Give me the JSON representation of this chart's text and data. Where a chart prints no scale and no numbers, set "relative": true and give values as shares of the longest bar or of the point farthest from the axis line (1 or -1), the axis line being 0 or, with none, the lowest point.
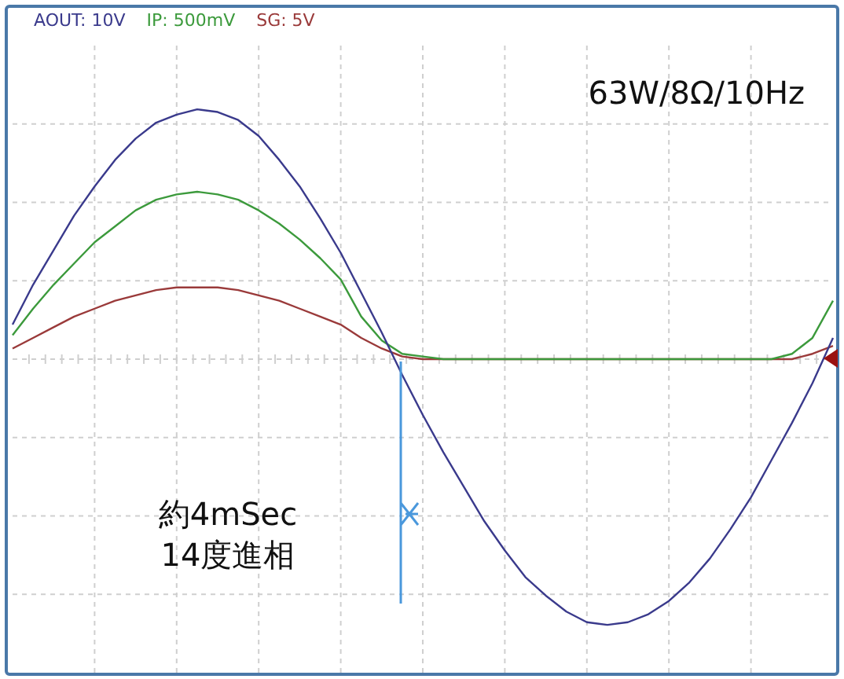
{
  "chart_data": {
    "type": "line",
    "relative": true,
    "legend": "top left",
    "grid": true,
    "marker": "none",
    "line_style": "solid",
    "annotations": [
      "63W/8Ω/10Hz",
      "約4mSec\n14度進相"
    ],
    "categories": [
      null,
      null,
      null,
      null,
      null,
      null,
      null,
      null,
      null,
      null,
      null,
      null,
      null,
      null,
      null,
      null,
      null,
      null,
      null,
      null,
      null,
      null,
      null,
      null,
      null,
      null,
      null,
      null,
      null,
      null,
      null,
      null,
      null,
      null,
      null,
      null,
      null,
      null,
      null,
      null,
      null
    ],
    "series": [
      {
        "name": "AOUT: 10V",
        "color": "#3a3a8c",
        "values": [
          0.13,
          0.28,
          0.41,
          0.54,
          0.65,
          0.75,
          0.83,
          0.89,
          0.92,
          0.94,
          0.93,
          0.9,
          0.84,
          0.75,
          0.65,
          0.53,
          0.4,
          0.25,
          0.1,
          -0.06,
          -0.21,
          -0.35,
          -0.48,
          -0.61,
          -0.72,
          -0.82,
          -0.89,
          -0.95,
          -0.99,
          -1,
          -0.99,
          -0.96,
          -0.91,
          -0.84,
          -0.75,
          -0.64,
          -0.52,
          -0.38,
          -0.24,
          -0.09,
          0.08
        ]
      },
      {
        "name": "IP: 500mV",
        "color": "#3c9a3c",
        "values": [
          0.09,
          0.19,
          0.28,
          0.36,
          0.44,
          0.5,
          0.56,
          0.6,
          0.62,
          0.63,
          0.62,
          0.6,
          0.56,
          0.51,
          0.45,
          0.38,
          0.3,
          0.16,
          0.07,
          0.02,
          0.01,
          0,
          0,
          0,
          0,
          0,
          0,
          0,
          0,
          0,
          0,
          0,
          0,
          0,
          0,
          0,
          0,
          0,
          0.02,
          0.08,
          0.22
        ]
      },
      {
        "name": "SG: 5V",
        "color": "#9a3a3a",
        "values": [
          0.04,
          0.08,
          0.12,
          0.16,
          0.19,
          0.22,
          0.24,
          0.26,
          0.27,
          0.27,
          0.27,
          0.26,
          0.24,
          0.22,
          0.19,
          0.16,
          0.13,
          0.08,
          0.04,
          0.01,
          0,
          0,
          0,
          0,
          0,
          0,
          0,
          0,
          0,
          0,
          0,
          0,
          0,
          0,
          0,
          0,
          0,
          0,
          0,
          0.02,
          0.05
        ]
      }
    ]
  }
}
